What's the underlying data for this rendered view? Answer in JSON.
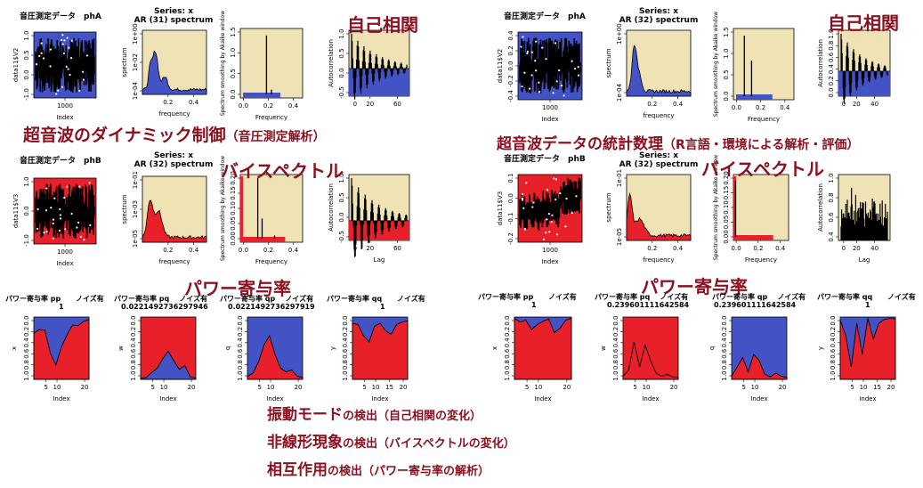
{
  "headings": {
    "autocorr_left": "自己相関",
    "autocorr_right": "自己相関",
    "bispectrum_left": "バイスペクトル",
    "bispectrum_right": "バイスペクトル",
    "power_left": "パワー寄与率",
    "power_right": "パワー寄与率"
  },
  "subtitles": {
    "left_main": "超音波のダイナミック制御",
    "left_paren": "（音圧測定解析）",
    "right_main": "超音波データの統計数理",
    "right_paren": "（R言語・環境による解析・評価）"
  },
  "notes": [
    {
      "main": "振動モード",
      "rest": "の検出（自己相関の変化）"
    },
    {
      "main": "非線形現象",
      "rest": "の検出（バイスペクトルの変化）"
    },
    {
      "main": "相互作用",
      "rest": "の検出（パワー寄与率の解析）"
    }
  ],
  "panel_titles": {
    "series_label": "Series: x",
    "left_rowA_spec": "AR (31) spectrum",
    "left_rowB_spec": "AR (32) spectrum",
    "right_rowA_spec": "AR (32) spectrum",
    "right_rowB_spec": "AR (32) spectrum",
    "phA": "音圧測定データ　phA",
    "phB": "音圧測定データ　phB"
  },
  "power_titles": {
    "left": [
      {
        "title": "パワー寄与率 pp",
        "noise": "ノイズ有",
        "value": "1"
      },
      {
        "title": "パワー寄与率 pq",
        "noise": "ノイズ有",
        "value": "0.0221492736297946"
      },
      {
        "title": "パワー寄与率 qp",
        "noise": "ノイズ有",
        "value": "0.0221492736297919"
      },
      {
        "title": "パワー寄与率 qq",
        "noise": "ノイズ有",
        "value": "1"
      }
    ],
    "right": [
      {
        "title": "パワー寄与率 pp",
        "noise": "ノイズ有",
        "value": "1"
      },
      {
        "title": "パワー寄与率 pq",
        "noise": "ノイズ有",
        "value": "0.239601111642584"
      },
      {
        "title": "パワー寄与率 qp",
        "noise": "ノイズ有",
        "value": "0.239601111642584"
      },
      {
        "title": "パワー寄与率 qq",
        "noise": "ノイズ有",
        "value": "1"
      }
    ]
  },
  "axis_labels": {
    "index": "Index",
    "frequency_lower": "frequency",
    "frequency_upper": "Frequency",
    "lag": "Lag",
    "spectrum": "spectrum",
    "smoothing": "Spectrum smoothing by Akaike window",
    "autocorrelation": "Autocorrelation",
    "data11_v2": "data11$V2",
    "data11_v3": "data11$V3",
    "x": "x",
    "w": "w",
    "q": "q",
    "y": "y"
  },
  "ticks": {
    "index_1000": [
      "1000"
    ],
    "freq_02_04": [
      "0.2",
      "0.4"
    ],
    "freq_00_02_04": [
      "0.0",
      "0.2",
      "0.4"
    ],
    "lag_0_20_60": [
      "0",
      "20",
      "60"
    ],
    "lag_0_20_40": [
      "0",
      "20",
      "40"
    ],
    "idx_5_10_20": [
      "5",
      "10",
      "20"
    ],
    "idx_5_10_15_20": [
      "5",
      "10",
      "15",
      "20"
    ],
    "zero_to_one": [
      "0.0",
      "0.2",
      "0.4",
      "0.6",
      "0.8",
      "1.0"
    ],
    "spec_a": [
      "1e+00",
      "1e-02",
      "1e-04"
    ],
    "spec_b": [
      "1e-01",
      "1e-03",
      "1e-05"
    ],
    "spec_c": [
      "1e+00",
      "1e-04"
    ],
    "spec_d": [
      "1e-01",
      "1e-05"
    ],
    "ac_left_a": [
      "1.0",
      "0.5",
      "0.0",
      "-0.5"
    ],
    "ac_right_a": [
      "1.0",
      "0.8",
      "0.6",
      "0.4",
      "0.2",
      "0.0"
    ],
    "ac_left_b": [
      "1.0",
      "0.5",
      "0.0",
      "-0.5"
    ],
    "ac_right_b": [
      "1.0",
      "0.8",
      "0.6",
      "0.4"
    ],
    "ts_la": [
      "1.0",
      "0.5",
      "0.0",
      "-1.0"
    ],
    "ts_lb": [
      "1.0",
      "0.0",
      "-1.0"
    ],
    "ts_ra": [
      "0.4",
      "0.2",
      "0.0",
      "-0.2",
      "-0.4"
    ],
    "ts_rb": [
      "0.1",
      "0.0",
      "-0.1",
      "-0.2"
    ],
    "bis_la": [
      "1.5",
      "1.0",
      "0.5",
      "0.0"
    ],
    "bis_lb": [
      "0.20",
      "0.15",
      "0.10",
      "0.05",
      "0.00"
    ],
    "bis_rb": [
      "0.20",
      "0.15",
      "0.10",
      "0.05",
      "0.00"
    ]
  },
  "colors": {
    "title_red": "#8b1020",
    "panel_blue": "#4353c6",
    "panel_red": "#e8202a",
    "panel_beige": "#efe3b6"
  },
  "chart_data": {
    "type": "area",
    "description_ref": "Power contribution rates",
    "left": [
      {
        "name": "pp",
        "x": [
          1,
          3,
          5,
          7,
          9,
          11,
          13,
          15,
          17,
          19,
          21
        ],
        "y": [
          0.74,
          0.8,
          0.79,
          0.42,
          0.23,
          0.52,
          0.71,
          0.87,
          0.86,
          0.93,
          0.96
        ]
      },
      {
        "name": "pq",
        "x": [
          1,
          3,
          5,
          7,
          9,
          11,
          13,
          15,
          17,
          19,
          21
        ],
        "y": [
          0.02,
          0.03,
          0.11,
          0.18,
          0.33,
          0.45,
          0.3,
          0.16,
          0.22,
          0.04,
          0.02
        ]
      },
      {
        "name": "qp",
        "x": [
          1,
          3,
          5,
          7,
          9,
          11,
          13,
          15,
          17,
          19,
          21
        ],
        "y": [
          0.05,
          0.1,
          0.28,
          0.55,
          0.7,
          0.4,
          0.18,
          0.12,
          0.15,
          0.05,
          0.03
        ]
      },
      {
        "name": "qq",
        "x": [
          1,
          3,
          5,
          7,
          9,
          11,
          13,
          15,
          17,
          19,
          21
        ],
        "y": [
          0.9,
          0.88,
          0.7,
          0.6,
          0.85,
          0.9,
          0.78,
          0.72,
          0.88,
          0.92,
          0.94
        ]
      }
    ],
    "right": [
      {
        "name": "pp",
        "x": [
          1,
          3,
          5,
          7,
          9,
          11,
          13,
          15,
          17,
          19,
          21
        ],
        "y": [
          0.98,
          0.92,
          0.95,
          0.8,
          0.88,
          0.93,
          0.97,
          0.75,
          0.82,
          0.95,
          0.98
        ]
      },
      {
        "name": "pq",
        "x": [
          1,
          3,
          5,
          7,
          9,
          11,
          13,
          15,
          17,
          19,
          21
        ],
        "y": [
          0.05,
          0.15,
          0.6,
          0.2,
          0.55,
          0.3,
          0.1,
          0.05,
          0.08,
          0.04,
          0.03
        ]
      },
      {
        "name": "qp",
        "x": [
          1,
          3,
          5,
          7,
          9,
          11,
          13,
          15,
          17,
          19,
          21
        ],
        "y": [
          0.05,
          0.2,
          0.35,
          0.12,
          0.4,
          0.3,
          0.08,
          0.04,
          0.1,
          0.05,
          0.03
        ]
      },
      {
        "name": "qq",
        "x": [
          1,
          3,
          5,
          7,
          9,
          11,
          13,
          15,
          17,
          19,
          21
        ],
        "y": [
          0.95,
          0.7,
          0.2,
          0.9,
          0.4,
          0.98,
          0.65,
          0.9,
          0.96,
          0.98,
          0.97
        ]
      }
    ]
  }
}
